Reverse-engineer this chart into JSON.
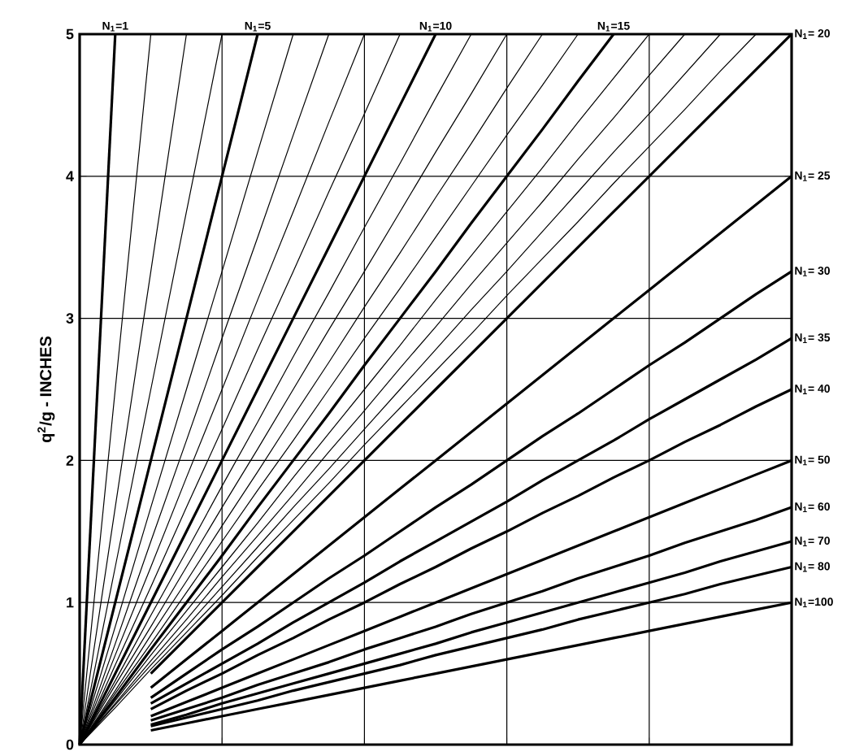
{
  "chart_data": {
    "type": "line",
    "ylabel": "q$^{2}$/g - INCHES",
    "ylim": [
      0,
      5
    ],
    "yticks": [
      0,
      1,
      2,
      3,
      4,
      5
    ],
    "grid": true,
    "tick_labels": "y",
    "legend": "right",
    "categories": [
      null,
      null,
      null,
      null,
      null,
      null,
      null,
      null,
      null,
      null,
      null,
      null,
      null,
      null,
      null,
      null,
      null,
      null,
      null,
      null,
      null
    ],
    "series": [
      {
        "name": "N$_{1}$=1",
        "color": "#000000",
        "values": [
          0,
          5,
          null,
          null,
          null,
          null,
          null,
          null,
          null,
          null,
          null,
          null,
          null,
          null,
          null,
          null,
          null,
          null,
          null,
          null,
          null
        ]
      },
      {
        "color": "#000000",
        "values": [
          0,
          2.5,
          5,
          null,
          null,
          null,
          null,
          null,
          null,
          null,
          null,
          null,
          null,
          null,
          null,
          null,
          null,
          null,
          null,
          null,
          null
        ]
      },
      {
        "color": "#000000",
        "values": [
          0,
          1.67,
          3.33,
          5,
          null,
          null,
          null,
          null,
          null,
          null,
          null,
          null,
          null,
          null,
          null,
          null,
          null,
          null,
          null,
          null,
          null
        ]
      },
      {
        "color": "#000000",
        "values": [
          0,
          1.25,
          2.5,
          3.75,
          5,
          null,
          null,
          null,
          null,
          null,
          null,
          null,
          null,
          null,
          null,
          null,
          null,
          null,
          null,
          null,
          null
        ]
      },
      {
        "name": "N$_{1}$=5",
        "color": "#000000",
        "values": [
          0,
          1,
          2,
          3,
          4,
          5,
          null,
          null,
          null,
          null,
          null,
          null,
          null,
          null,
          null,
          null,
          null,
          null,
          null,
          null,
          null
        ]
      },
      {
        "color": "#000000",
        "values": [
          0,
          0.83,
          1.67,
          2.5,
          3.33,
          4.17,
          5,
          null,
          null,
          null,
          null,
          null,
          null,
          null,
          null,
          null,
          null,
          null,
          null,
          null,
          null
        ]
      },
      {
        "color": "#000000",
        "values": [
          0,
          0.71,
          1.43,
          2.14,
          2.86,
          3.57,
          4.29,
          5,
          null,
          null,
          null,
          null,
          null,
          null,
          null,
          null,
          null,
          null,
          null,
          null,
          null
        ]
      },
      {
        "color": "#000000",
        "values": [
          0,
          0.63,
          1.25,
          1.88,
          2.5,
          3.13,
          3.75,
          4.38,
          5,
          null,
          null,
          null,
          null,
          null,
          null,
          null,
          null,
          null,
          null,
          null,
          null
        ]
      },
      {
        "color": "#000000",
        "values": [
          0,
          0.56,
          1.11,
          1.67,
          2.22,
          2.78,
          3.33,
          3.89,
          4.44,
          5,
          null,
          null,
          null,
          null,
          null,
          null,
          null,
          null,
          null,
          null,
          null
        ]
      },
      {
        "name": "N$_{1}$=10",
        "color": "#000000",
        "values": [
          0,
          0.5,
          1,
          1.5,
          2,
          2.5,
          3,
          3.5,
          4,
          4.5,
          5,
          null,
          null,
          null,
          null,
          null,
          null,
          null,
          null,
          null,
          null
        ]
      },
      {
        "color": "#000000",
        "values": [
          0,
          0.45,
          0.91,
          1.36,
          1.82,
          2.27,
          2.73,
          3.18,
          3.64,
          4.09,
          4.55,
          5,
          null,
          null,
          null,
          null,
          null,
          null,
          null,
          null,
          null
        ]
      },
      {
        "color": "#000000",
        "values": [
          0,
          0.42,
          0.83,
          1.25,
          1.67,
          2.08,
          2.5,
          2.92,
          3.33,
          3.75,
          4.17,
          4.58,
          5,
          null,
          null,
          null,
          null,
          null,
          null,
          null,
          null
        ]
      },
      {
        "color": "#000000",
        "values": [
          0,
          0.38,
          0.77,
          1.15,
          1.54,
          1.92,
          2.31,
          2.69,
          3.08,
          3.46,
          3.85,
          4.23,
          4.62,
          5,
          null,
          null,
          null,
          null,
          null,
          null,
          null
        ]
      },
      {
        "color": "#000000",
        "values": [
          0,
          0.36,
          0.71,
          1.07,
          1.43,
          1.79,
          2.14,
          2.5,
          2.86,
          3.21,
          3.57,
          3.93,
          4.29,
          4.64,
          5,
          null,
          null,
          null,
          null,
          null,
          null
        ]
      },
      {
        "name": "N$_{1}$=15",
        "color": "#000000",
        "values": [
          0,
          0.33,
          0.67,
          1,
          1.33,
          1.67,
          2,
          2.33,
          2.67,
          3,
          3.33,
          3.67,
          4,
          4.33,
          4.67,
          5,
          null,
          null,
          null,
          null,
          null
        ]
      },
      {
        "color": "#000000",
        "values": [
          0,
          0.31,
          0.63,
          0.94,
          1.25,
          1.56,
          1.88,
          2.19,
          2.5,
          2.81,
          3.13,
          3.44,
          3.75,
          4.06,
          4.38,
          4.69,
          5,
          null,
          null,
          null,
          null
        ]
      },
      {
        "color": "#000000",
        "values": [
          0,
          0.29,
          0.59,
          0.88,
          1.18,
          1.47,
          1.76,
          2.06,
          2.35,
          2.65,
          2.94,
          3.24,
          3.53,
          3.82,
          4.12,
          4.41,
          4.71,
          5,
          null,
          null,
          null
        ]
      },
      {
        "color": "#000000",
        "values": [
          0,
          0.28,
          0.56,
          0.83,
          1.11,
          1.39,
          1.67,
          1.94,
          2.22,
          2.5,
          2.78,
          3.06,
          3.33,
          3.61,
          3.89,
          4.17,
          4.44,
          4.72,
          5,
          null,
          null
        ]
      },
      {
        "color": "#000000",
        "values": [
          0,
          0.26,
          0.53,
          0.79,
          1.05,
          1.32,
          1.58,
          1.84,
          2.11,
          2.37,
          2.63,
          2.89,
          3.16,
          3.42,
          3.68,
          3.95,
          4.21,
          4.47,
          4.74,
          5,
          null
        ]
      },
      {
        "name": "N$_{1}$= 20",
        "color": "#000000",
        "values": [
          null,
          null,
          0.5,
          0.75,
          1,
          1.25,
          1.5,
          1.75,
          2,
          2.25,
          2.5,
          2.75,
          3,
          3.25,
          3.5,
          3.75,
          4,
          4.25,
          4.5,
          4.75,
          5
        ]
      },
      {
        "name": "N$_{1}$= 25",
        "color": "#000000",
        "values": [
          null,
          null,
          0.4,
          0.6,
          0.8,
          1,
          1.2,
          1.4,
          1.6,
          1.8,
          2,
          2.2,
          2.4,
          2.6,
          2.8,
          3,
          3.2,
          3.4,
          3.6,
          3.8,
          4
        ]
      },
      {
        "name": "N$_{1}$= 30",
        "color": "#000000",
        "values": [
          null,
          null,
          0.33,
          0.5,
          0.67,
          0.83,
          1,
          1.17,
          1.33,
          1.5,
          1.67,
          1.83,
          2,
          2.17,
          2.33,
          2.5,
          2.67,
          2.83,
          3,
          3.17,
          3.33
        ]
      },
      {
        "name": "N$_{1}$= 35",
        "color": "#000000",
        "values": [
          null,
          null,
          0.29,
          0.43,
          0.57,
          0.71,
          0.86,
          1,
          1.14,
          1.29,
          1.43,
          1.57,
          1.71,
          1.86,
          2,
          2.14,
          2.29,
          2.43,
          2.57,
          2.71,
          2.86
        ]
      },
      {
        "name": "N$_{1}$= 40",
        "color": "#000000",
        "values": [
          null,
          null,
          0.25,
          0.38,
          0.5,
          0.63,
          0.75,
          0.88,
          1,
          1.13,
          1.25,
          1.38,
          1.5,
          1.63,
          1.75,
          1.88,
          2,
          2.13,
          2.25,
          2.38,
          2.5
        ]
      },
      {
        "name": "N$_{1}$= 50",
        "color": "#000000",
        "values": [
          null,
          null,
          0.2,
          0.3,
          0.4,
          0.5,
          0.6,
          0.7,
          0.8,
          0.9,
          1,
          1.1,
          1.2,
          1.3,
          1.4,
          1.5,
          1.6,
          1.7,
          1.8,
          1.9,
          2
        ]
      },
      {
        "name": "N$_{1}$= 60",
        "color": "#000000",
        "values": [
          null,
          null,
          0.17,
          0.25,
          0.33,
          0.42,
          0.5,
          0.58,
          0.67,
          0.75,
          0.83,
          0.92,
          1,
          1.08,
          1.17,
          1.25,
          1.33,
          1.42,
          1.5,
          1.58,
          1.67
        ]
      },
      {
        "name": "N$_{1}$= 70",
        "color": "#000000",
        "values": [
          null,
          null,
          0.14,
          0.21,
          0.29,
          0.36,
          0.43,
          0.5,
          0.57,
          0.64,
          0.71,
          0.79,
          0.86,
          0.93,
          1,
          1.07,
          1.14,
          1.21,
          1.29,
          1.36,
          1.43
        ]
      },
      {
        "name": "N$_{1}$= 80",
        "color": "#000000",
        "values": [
          null,
          null,
          0.13,
          0.19,
          0.25,
          0.31,
          0.38,
          0.44,
          0.5,
          0.56,
          0.63,
          0.69,
          0.75,
          0.81,
          0.88,
          0.94,
          1,
          1.06,
          1.13,
          1.19,
          1.25
        ]
      },
      {
        "name": "N$_{1}$=100",
        "color": "#000000",
        "values": [
          null,
          null,
          0.1,
          0.15,
          0.2,
          0.25,
          0.3,
          0.35,
          0.4,
          0.45,
          0.5,
          0.55,
          0.6,
          0.65,
          0.7,
          0.75,
          0.8,
          0.85,
          0.9,
          0.95,
          1
        ]
      }
    ]
  }
}
